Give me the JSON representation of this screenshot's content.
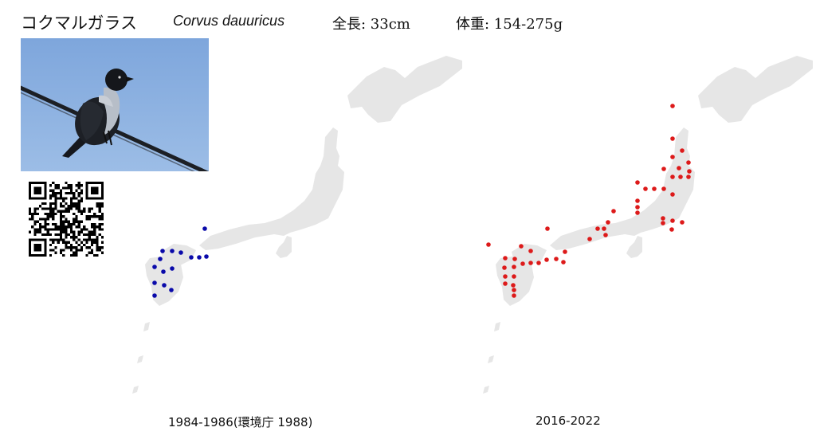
{
  "header": {
    "japanese_name": "コクマルガラス",
    "scientific_name": "Corvus dauuricus",
    "length": "全長: 33cm",
    "weight": "体重: 154-275g"
  },
  "photo": {
    "icon": "jackdaw-bird-photo"
  },
  "qr_code": {
    "icon": "qr-code"
  },
  "maps": [
    {
      "period_label": "1984-1986(環境庁 1988)",
      "dot_color": "#0a0aaa"
    },
    {
      "period_label": "2016-2022",
      "dot_color": "#dd1a1a"
    }
  ],
  "colors": {
    "land": "#e6e6e6",
    "background": "#ffffff"
  }
}
